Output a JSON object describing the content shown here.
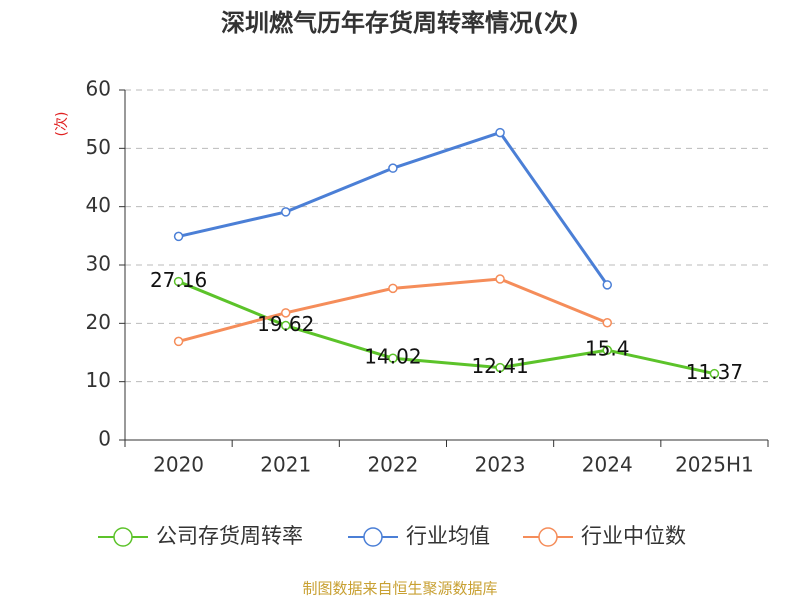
{
  "chart_data": {
    "type": "line",
    "title": "深圳燃气历年存货周转率情况(次)",
    "y_label": "(次)",
    "categories": [
      "2020",
      "2021",
      "2022",
      "2023",
      "2024",
      "2025H1"
    ],
    "series": [
      {
        "name": "公司存货周转率",
        "color": "#5cc32a",
        "values": [
          27.16,
          19.62,
          14.02,
          12.41,
          15.4,
          11.37
        ],
        "show_labels": true
      },
      {
        "name": "行业均值",
        "color": "#4b7fd6",
        "values": [
          34.9,
          39.1,
          46.6,
          52.7,
          26.6,
          null
        ]
      },
      {
        "name": "行业中位数",
        "color": "#f58d5a",
        "values": [
          16.9,
          21.8,
          26.0,
          27.6,
          20.1,
          null
        ]
      }
    ],
    "ylim": [
      0,
      60
    ],
    "yticks": [
      0,
      10,
      20,
      30,
      40,
      50,
      60
    ],
    "grid": true,
    "legend": "bottom",
    "source": "制图数据来自恒生聚源数据库"
  }
}
